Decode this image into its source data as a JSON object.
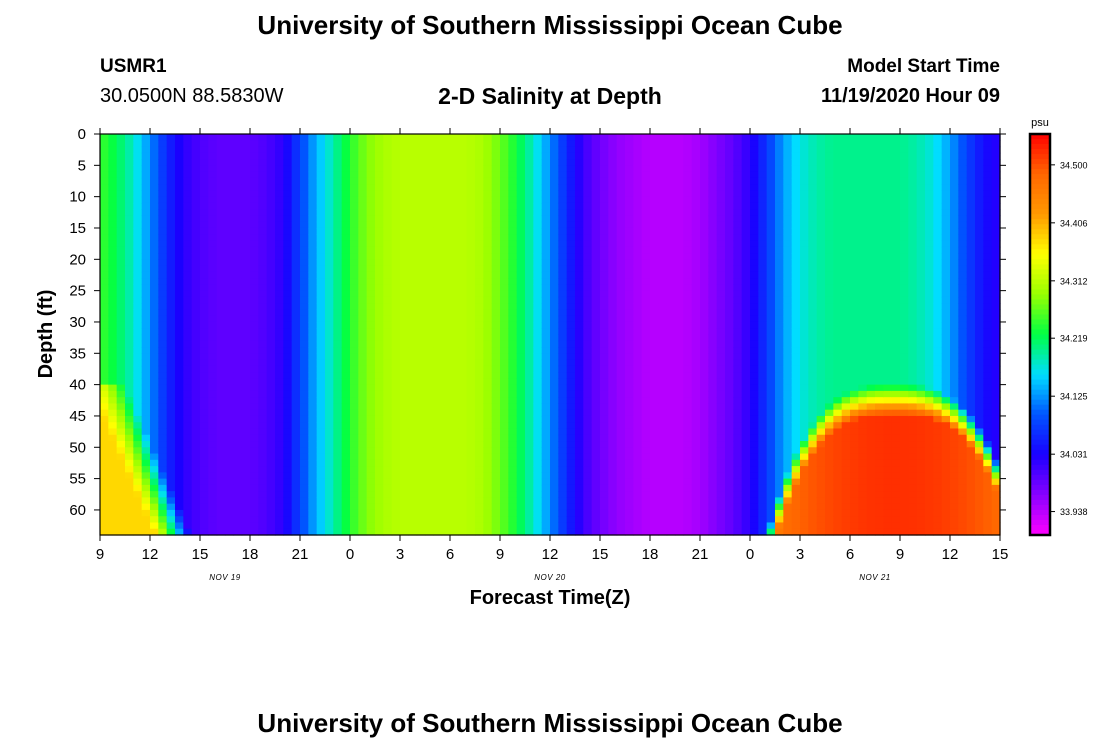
{
  "header": {
    "title": "University of Southern Mississippi Ocean Cube",
    "station_id": "USMR1",
    "station_location": "30.0500N 88.5830W",
    "plot_title": "2-D Salinity at Depth",
    "model_start_label": "Model Start Time",
    "model_start_value": "11/19/2020 Hour 09"
  },
  "footer": {
    "title": "University of Southern Mississippi Ocean Cube"
  },
  "chart_data": {
    "type": "heatmap",
    "title": "2-D Salinity at Depth",
    "xlabel": "Forecast Time(Z)",
    "ylabel": "Depth (ft)",
    "x_ticks": [
      "9",
      "12",
      "15",
      "18",
      "21",
      "0",
      "3",
      "6",
      "9",
      "12",
      "15",
      "18",
      "21",
      "0",
      "3",
      "6",
      "9",
      "12",
      "15"
    ],
    "x_day_labels": [
      {
        "label": "NOV 19",
        "hour_index": 7.5
      },
      {
        "label": "NOV 20",
        "hour_index": 27
      },
      {
        "label": "NOV 21",
        "hour_index": 46.5
      }
    ],
    "xlim_hours": [
      0,
      54
    ],
    "y_ticks": [
      0,
      5,
      10,
      15,
      20,
      25,
      30,
      35,
      40,
      45,
      50,
      55,
      60
    ],
    "ylim": [
      0,
      64
    ],
    "y_inverted": true,
    "colorbar": {
      "unit": "psu",
      "min": 33.9,
      "max": 34.55,
      "tick_labels": [
        "34.500",
        "34.406",
        "34.312",
        "34.219",
        "34.125",
        "34.031",
        "33.938"
      ],
      "tick_values": [
        34.5,
        34.406,
        34.312,
        34.219,
        34.125,
        34.031,
        33.938
      ],
      "colormap": [
        "#ff00ff",
        "#8800ff",
        "#1a00ff",
        "#0055ff",
        "#00ddff",
        "#00ff44",
        "#99ff00",
        "#ffff00",
        "#ff9900",
        "#ff6600",
        "#ff0000"
      ]
    },
    "surface_salinity_profile": {
      "hours": [
        0,
        1,
        2,
        3,
        4,
        5,
        6,
        7,
        8,
        9,
        10,
        11,
        12,
        13,
        14,
        15,
        16,
        17,
        18,
        19,
        20,
        21,
        22,
        23,
        24,
        25,
        26,
        27,
        28,
        29,
        30,
        31,
        32,
        33,
        34,
        35,
        36,
        37,
        38,
        39,
        40,
        41,
        42,
        43,
        44,
        45,
        46,
        47,
        48,
        49,
        50,
        51,
        52,
        53,
        54
      ],
      "values": [
        34.25,
        34.22,
        34.18,
        34.12,
        34.06,
        34.02,
        34.0,
        33.99,
        33.99,
        33.99,
        34.0,
        34.02,
        34.08,
        34.14,
        34.19,
        34.24,
        34.28,
        34.3,
        34.31,
        34.31,
        34.31,
        34.31,
        34.31,
        34.3,
        34.27,
        34.23,
        34.18,
        34.12,
        34.06,
        34.01,
        33.98,
        33.96,
        33.95,
        33.94,
        33.94,
        33.94,
        33.95,
        33.97,
        33.99,
        34.02,
        34.07,
        34.13,
        34.17,
        34.19,
        34.2,
        34.2,
        34.2,
        34.2,
        34.2,
        34.19,
        34.17,
        34.13,
        34.08,
        34.04,
        34.02
      ]
    },
    "deep_features": [
      {
        "description": "high salinity bottom wedge",
        "hours": [
          0,
          4
        ],
        "depth_from": 40,
        "depth_to": 64,
        "peak": 34.38
      },
      {
        "description": "high salinity bottom lens",
        "hours": [
          41,
          53
        ],
        "depth_from": 42,
        "depth_to": 64,
        "peak": 34.52
      }
    ]
  }
}
